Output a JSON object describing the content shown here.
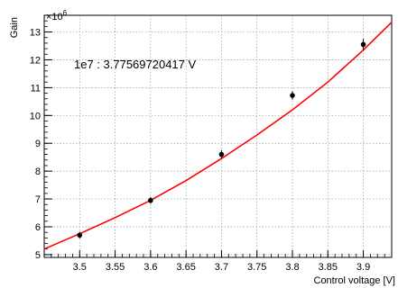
{
  "chart_data": {
    "type": "scatter",
    "title": "",
    "xlabel": "Control voltage [V]",
    "ylabel": "Gain",
    "y_exponent_label": "×10",
    "y_exponent_power": "6",
    "annotation": "1e7 : 3.77569720417 V",
    "xlim": [
      3.45,
      3.94
    ],
    "ylim": [
      4.9,
      13.6
    ],
    "x_ticks": [
      "3.5",
      "3.55",
      "3.6",
      "3.65",
      "3.7",
      "3.75",
      "3.8",
      "3.85",
      "3.9"
    ],
    "y_ticks": [
      "5",
      "6",
      "7",
      "8",
      "9",
      "10",
      "11",
      "12",
      "13"
    ],
    "grid": true,
    "series": [
      {
        "x": [
          3.5,
          3.6,
          3.7,
          3.8,
          3.9
        ],
        "y": [
          5.7,
          6.95,
          8.6,
          10.72,
          12.55
        ],
        "yerr": [
          0.12,
          0.12,
          0.15,
          0.15,
          0.2
        ],
        "marker_color": "#000000"
      }
    ],
    "fit_curve": {
      "x": [
        3.45,
        3.5,
        3.55,
        3.6,
        3.65,
        3.7,
        3.75,
        3.8,
        3.85,
        3.9,
        3.94
      ],
      "y": [
        5.2,
        5.75,
        6.33,
        6.95,
        7.66,
        8.45,
        9.3,
        10.2,
        11.2,
        12.35,
        13.35
      ],
      "color": "#ff0000"
    }
  }
}
